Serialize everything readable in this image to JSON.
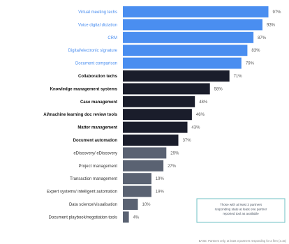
{
  "chart_data": {
    "type": "bar",
    "orientation": "horizontal",
    "categories": [
      "Virtual meeting techs",
      "Voice digital dictation",
      "CRM",
      "Digital/electronic signature",
      "Document comparison",
      "Collaboration techs",
      "Knowledge management systems",
      "Case management",
      "AI/machine learning doc review tools",
      "Matter management",
      "Document automation",
      "eDiscovery/ eDiscovery",
      "Project management",
      "Transaction management",
      "Expert systems/ intelligent automation",
      "Data science/visualisation",
      "Document playbook/negotiation tools"
    ],
    "values": [
      97,
      93,
      87,
      83,
      79,
      71,
      58,
      48,
      46,
      43,
      37,
      29,
      27,
      19,
      19,
      10,
      4
    ],
    "value_labels": [
      "97%",
      "93%",
      "87%",
      "83%",
      "79%",
      "71%",
      "58%",
      "48%",
      "46%",
      "43%",
      "37%",
      "29%",
      "27%",
      "19%",
      "19%",
      "10%",
      "4%"
    ],
    "bar_colors": [
      "#4a8ef0",
      "#4a8ef0",
      "#4a8ef0",
      "#4a8ef0",
      "#4a8ef0",
      "#1a1d2b",
      "#1a1d2b",
      "#1a1d2b",
      "#1a1d2b",
      "#1a1d2b",
      "#1a1d2b",
      "#5a6272",
      "#5a6272",
      "#5a6272",
      "#5a6272",
      "#5a6272",
      "#5a6272"
    ],
    "label_colors": [
      "#4a8ef0",
      "#4a8ef0",
      "#4a8ef0",
      "#4a8ef0",
      "#4a8ef0",
      "#111111",
      "#111111",
      "#111111",
      "#111111",
      "#111111",
      "#111111",
      "#333333",
      "#333333",
      "#333333",
      "#333333",
      "#333333",
      "#333333"
    ],
    "xlim": [
      0,
      100
    ],
    "note": "Those with at least 3 partners responding state at least one partner reported tool as available",
    "note_color": "#6fc1c4",
    "footnote": "BASE: Partners only, at least 3 partners responding for a firm (3.15)",
    "grid": false
  }
}
